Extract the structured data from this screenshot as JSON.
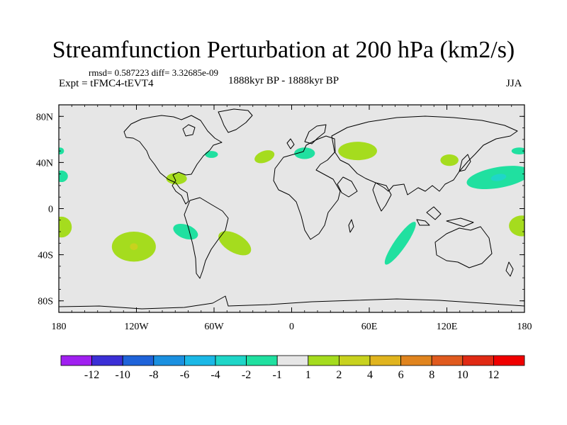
{
  "chart_data": {
    "type": "heatmap",
    "title": "Streamfunction Perturbation at 200 hPa (km2/s)",
    "subtitle_left": "rmsd= 0.587223 diff= 3.32685e-09",
    "subtitle_center": "1888kyr BP - 1888kyr BP",
    "left_label": "Expt = tFMC4-tEVT4",
    "right_label": "JJA",
    "x_range": [
      -180,
      180
    ],
    "y_range": [
      -90,
      90
    ],
    "x_ticks": [
      {
        "value": -180,
        "label": "180"
      },
      {
        "value": -120,
        "label": "120W"
      },
      {
        "value": -60,
        "label": "60W"
      },
      {
        "value": 0,
        "label": "0"
      },
      {
        "value": 60,
        "label": "60E"
      },
      {
        "value": 120,
        "label": "120E"
      },
      {
        "value": 180,
        "label": "180"
      }
    ],
    "y_ticks": [
      {
        "value": 80,
        "label": "80N"
      },
      {
        "value": 40,
        "label": "40N"
      },
      {
        "value": 0,
        "label": "0"
      },
      {
        "value": -40,
        "label": "40S"
      },
      {
        "value": -80,
        "label": "80S"
      }
    ],
    "colorbar": {
      "levels": [
        "-12",
        "-10",
        "-8",
        "-6",
        "-4",
        "-2",
        "-1",
        "1",
        "2",
        "4",
        "6",
        "8",
        "10",
        "12"
      ],
      "colors": [
        "#a020f0",
        "#3b2fd6",
        "#1f63d9",
        "#1a90e0",
        "#1bb8e6",
        "#1fd6c8",
        "#20e0a0",
        "#e6e6e6",
        "#a5dc1e",
        "#c8d21e",
        "#e0b41e",
        "#e0841e",
        "#e05a1e",
        "#e02a14",
        "#f00000"
      ]
    },
    "anomaly_regions": [
      {
        "id": "npac-west",
        "lon": 160,
        "lat": 27,
        "lon_r": 25,
        "lat_r": 9,
        "rot": -10,
        "color": "#20e0a0",
        "core_color": "#1fd6c8",
        "core_lon_r": 6,
        "core_lat_r": 3
      },
      {
        "id": "spac-central",
        "lon": -122,
        "lat": -33,
        "lon_r": 17,
        "lat_r": 13,
        "rot": 0,
        "color": "#a5dc1e",
        "core_color": "#c8d21e",
        "core_lon_r": 3,
        "core_lat_r": 3
      },
      {
        "id": "satl-east",
        "lon": -44,
        "lat": -30,
        "lon_r": 14,
        "lat_r": 8,
        "rot": 30,
        "color": "#a5dc1e"
      },
      {
        "id": "spac-east",
        "lon": -82,
        "lat": -20,
        "lon_r": 10,
        "lat_r": 6,
        "rot": 20,
        "color": "#20e0a0"
      },
      {
        "id": "indian-ocean",
        "lon": 84,
        "lat": -30,
        "lon_r": 20,
        "lat_r": 5,
        "rot": -55,
        "color": "#20e0a0"
      },
      {
        "id": "australia-east",
        "lon": 178,
        "lat": -15,
        "lon_r": 10,
        "lat_r": 9,
        "rot": 0,
        "color": "#a5dc1e"
      },
      {
        "id": "australia-west",
        "lon": -178,
        "lat": -16,
        "lon_r": 8,
        "lat_r": 9,
        "rot": 0,
        "color": "#a5dc1e"
      },
      {
        "id": "central-asia",
        "lon": 51,
        "lat": 50,
        "lon_r": 15,
        "lat_r": 8,
        "rot": 0,
        "color": "#a5dc1e"
      },
      {
        "id": "europe",
        "lon": 10,
        "lat": 48,
        "lon_r": 8,
        "lat_r": 5,
        "rot": 0,
        "color": "#20e0a0"
      },
      {
        "id": "natl",
        "lon": -21,
        "lat": 45,
        "lon_r": 8,
        "lat_r": 5,
        "rot": -20,
        "color": "#a5dc1e"
      },
      {
        "id": "na-east",
        "lon": -62,
        "lat": 47,
        "lon_r": 5,
        "lat_r": 3,
        "rot": 0,
        "color": "#20e0a0"
      },
      {
        "id": "gulf-mexico",
        "lon": -89,
        "lat": 26,
        "lon_r": 8,
        "lat_r": 5,
        "rot": 0,
        "color": "#a5dc1e"
      },
      {
        "id": "east-asia",
        "lon": 122,
        "lat": 42,
        "lon_r": 7,
        "lat_r": 5,
        "rot": 0,
        "color": "#a5dc1e"
      },
      {
        "id": "npac-east",
        "lon": 176,
        "lat": 50,
        "lon_r": 6,
        "lat_r": 3,
        "rot": 0,
        "color": "#20e0a0"
      },
      {
        "id": "pac-dateline-w",
        "lon": -178,
        "lat": 28,
        "lon_r": 5,
        "lat_r": 5,
        "rot": 0,
        "color": "#20e0a0"
      },
      {
        "id": "pac-dateline-n",
        "lon": -179,
        "lat": 50,
        "lon_r": 3,
        "lat_r": 3,
        "rot": 0,
        "color": "#20e0a0"
      }
    ]
  }
}
